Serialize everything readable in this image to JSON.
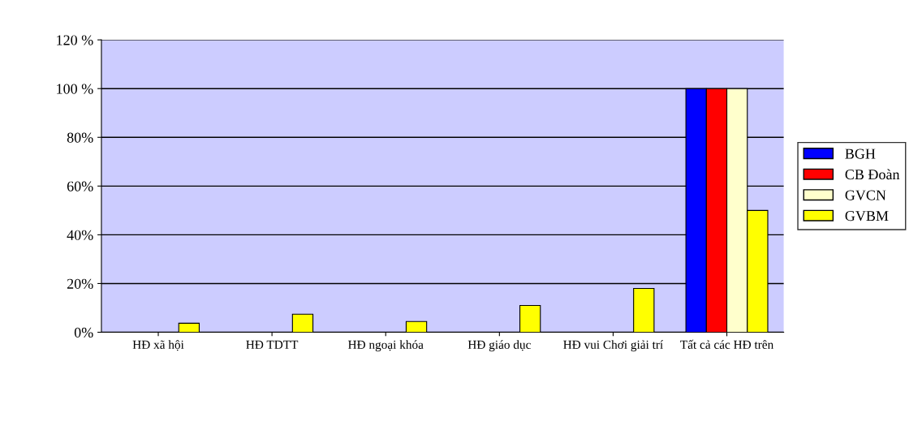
{
  "chart_data": {
    "type": "bar",
    "categories": [
      "HĐ xã hội",
      "HĐ TDTT",
      "HĐ ngoại khóa",
      "HĐ giáo dục",
      "HĐ vui Chơi giải trí",
      "Tất cả các HĐ trên"
    ],
    "series": [
      {
        "name": "BGH",
        "color": "#0000ff",
        "values": [
          null,
          null,
          null,
          null,
          null,
          100
        ]
      },
      {
        "name": "CB Đoàn",
        "color": "#ff0000",
        "values": [
          null,
          null,
          null,
          null,
          null,
          100
        ]
      },
      {
        "name": "GVCN",
        "color": "#ffffcc",
        "values": [
          null,
          null,
          null,
          null,
          null,
          100
        ]
      },
      {
        "name": "GVBM",
        "color": "#ffff00",
        "values": [
          3.7,
          7.4,
          4.4,
          11,
          18,
          50
        ]
      }
    ],
    "ylim": [
      0,
      120
    ],
    "yticks": [
      {
        "value": 0,
        "label": "0%"
      },
      {
        "value": 20,
        "label": "20%"
      },
      {
        "value": 40,
        "label": "40%"
      },
      {
        "value": 60,
        "label": "60%"
      },
      {
        "value": 80,
        "label": "80%"
      },
      {
        "value": 100,
        "label": "100 %"
      },
      {
        "value": 120,
        "label": "120 %"
      }
    ],
    "grid": "y",
    "legend": "right"
  }
}
